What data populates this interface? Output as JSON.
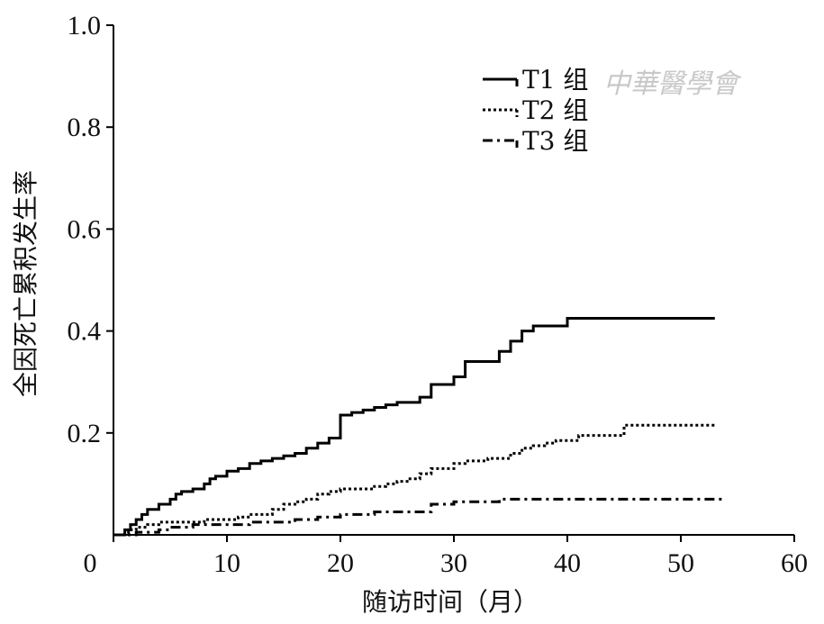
{
  "chart_data": {
    "type": "line",
    "title": "",
    "xlabel": "随访时间（月）",
    "ylabel": "全因死亡累积发生率",
    "xlim": [
      0,
      60
    ],
    "ylim": [
      0,
      1.0
    ],
    "xticks": [
      0,
      10,
      20,
      30,
      40,
      50,
      60
    ],
    "xtick_labels": [
      "0",
      "10",
      "20",
      "30",
      "40",
      "50",
      "60"
    ],
    "yticks": [
      0.2,
      0.4,
      0.6,
      0.8,
      1.0
    ],
    "ytick_labels": [
      "0.2",
      "0.4",
      "0.6",
      "0.8",
      "1.0"
    ],
    "grid": false,
    "legend_position": "top-right",
    "step": true,
    "series": [
      {
        "name": "T1 组",
        "line_style": "solid",
        "color": "#000000",
        "points": [
          [
            0,
            0
          ],
          [
            1,
            0.01
          ],
          [
            1.5,
            0.02
          ],
          [
            2,
            0.03
          ],
          [
            2.5,
            0.04
          ],
          [
            3,
            0.05
          ],
          [
            4,
            0.06
          ],
          [
            5,
            0.07
          ],
          [
            5.5,
            0.08
          ],
          [
            6,
            0.085
          ],
          [
            7,
            0.09
          ],
          [
            8,
            0.1
          ],
          [
            8.5,
            0.11
          ],
          [
            9,
            0.115
          ],
          [
            10,
            0.125
          ],
          [
            11,
            0.13
          ],
          [
            12,
            0.14
          ],
          [
            13,
            0.145
          ],
          [
            14,
            0.15
          ],
          [
            15,
            0.155
          ],
          [
            16,
            0.16
          ],
          [
            17,
            0.17
          ],
          [
            18,
            0.18
          ],
          [
            19,
            0.19
          ],
          [
            20,
            0.235
          ],
          [
            21,
            0.24
          ],
          [
            22,
            0.245
          ],
          [
            23,
            0.25
          ],
          [
            24,
            0.255
          ],
          [
            25,
            0.26
          ],
          [
            27,
            0.27
          ],
          [
            28,
            0.295
          ],
          [
            30,
            0.31
          ],
          [
            31,
            0.34
          ],
          [
            34,
            0.36
          ],
          [
            35,
            0.38
          ],
          [
            36,
            0.4
          ],
          [
            37,
            0.41
          ],
          [
            40,
            0.425
          ],
          [
            53,
            0.425
          ]
        ]
      },
      {
        "name": "T2 组",
        "line_style": "dotted",
        "color": "#000000",
        "points": [
          [
            0,
            0
          ],
          [
            1,
            0.005
          ],
          [
            1.5,
            0.01
          ],
          [
            2,
            0.015
          ],
          [
            3,
            0.02
          ],
          [
            4,
            0.025
          ],
          [
            5,
            0.025
          ],
          [
            8,
            0.03
          ],
          [
            11,
            0.035
          ],
          [
            12,
            0.04
          ],
          [
            14,
            0.05
          ],
          [
            15,
            0.06
          ],
          [
            16,
            0.065
          ],
          [
            17,
            0.07
          ],
          [
            18,
            0.08
          ],
          [
            19,
            0.085
          ],
          [
            20,
            0.09
          ],
          [
            23,
            0.095
          ],
          [
            24,
            0.1
          ],
          [
            25,
            0.105
          ],
          [
            26,
            0.11
          ],
          [
            27,
            0.12
          ],
          [
            28,
            0.13
          ],
          [
            30,
            0.14
          ],
          [
            31,
            0.145
          ],
          [
            33,
            0.15
          ],
          [
            35,
            0.16
          ],
          [
            36,
            0.17
          ],
          [
            37,
            0.175
          ],
          [
            38,
            0.18
          ],
          [
            39,
            0.185
          ],
          [
            41,
            0.195
          ],
          [
            45,
            0.215
          ],
          [
            53,
            0.215
          ]
        ]
      },
      {
        "name": "T3 组",
        "line_style": "dash-dot",
        "color": "#000000",
        "points": [
          [
            0,
            0
          ],
          [
            2,
            0.005
          ],
          [
            4,
            0.01
          ],
          [
            5,
            0.015
          ],
          [
            7,
            0.02
          ],
          [
            9,
            0.02
          ],
          [
            12,
            0.025
          ],
          [
            16,
            0.03
          ],
          [
            18,
            0.035
          ],
          [
            20,
            0.04
          ],
          [
            23,
            0.045
          ],
          [
            28,
            0.06
          ],
          [
            30,
            0.065
          ],
          [
            34,
            0.07
          ],
          [
            54,
            0.07
          ]
        ]
      }
    ]
  },
  "watermark": "中華醫學會"
}
